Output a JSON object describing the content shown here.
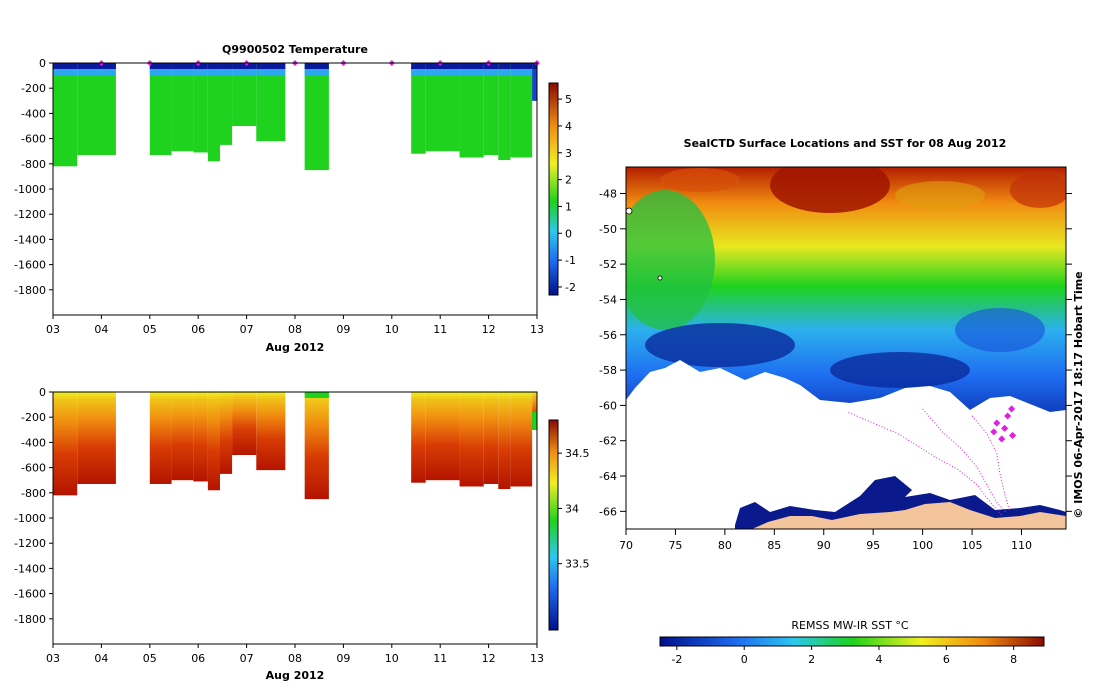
{
  "chart_data": [
    {
      "type": "heatmap",
      "title": "Q9900502  Temperature",
      "xlabel": "Aug 2012",
      "x_ticks": [
        "03",
        "04",
        "05",
        "06",
        "07",
        "08",
        "09",
        "10",
        "11",
        "12",
        "13"
      ],
      "xlim": [
        3,
        13
      ],
      "y_ticks": [
        "0",
        "-200",
        "-400",
        "-600",
        "-800",
        "-1000",
        "-1200",
        "-1400",
        "-1600",
        "-1800"
      ],
      "ylim": [
        -2000,
        0
      ],
      "colorbar_ticks": [
        "5",
        "4",
        "3",
        "2",
        "1",
        "0",
        "-1",
        "-2"
      ],
      "colorbar_range": [
        -2.3,
        5.6
      ],
      "profiles": [
        {
          "start": 3.0,
          "end": 3.5,
          "depth": -820
        },
        {
          "start": 3.5,
          "end": 4.3,
          "depth": -730
        },
        {
          "start": 5.0,
          "end": 5.45,
          "depth": -730
        },
        {
          "start": 5.45,
          "end": 5.9,
          "depth": -700
        },
        {
          "start": 5.9,
          "end": 6.2,
          "depth": -710
        },
        {
          "start": 6.2,
          "end": 6.45,
          "depth": -780
        },
        {
          "start": 6.45,
          "end": 6.7,
          "depth": -650
        },
        {
          "start": 6.7,
          "end": 7.2,
          "depth": -500
        },
        {
          "start": 7.2,
          "end": 7.8,
          "depth": -620
        },
        {
          "start": 8.2,
          "end": 8.7,
          "depth": -850
        },
        {
          "start": 10.4,
          "end": 10.7,
          "depth": -720
        },
        {
          "start": 10.7,
          "end": 11.4,
          "depth": -700
        },
        {
          "start": 11.4,
          "end": 11.9,
          "depth": -750
        },
        {
          "start": 11.9,
          "end": 12.2,
          "depth": -730
        },
        {
          "start": 12.2,
          "end": 12.45,
          "depth": -770
        },
        {
          "start": 12.45,
          "end": 12.9,
          "depth": -750
        },
        {
          "start": 12.9,
          "end": 13.05,
          "depth": -300
        }
      ],
      "surface_markers": [
        4,
        5,
        6,
        7,
        8,
        9,
        10,
        11,
        12,
        13
      ]
    },
    {
      "type": "heatmap",
      "title": "",
      "xlabel": "Aug 2012",
      "x_ticks": [
        "03",
        "04",
        "05",
        "06",
        "07",
        "08",
        "09",
        "10",
        "11",
        "12",
        "13"
      ],
      "xlim": [
        3,
        13
      ],
      "y_ticks": [
        "0",
        "-200",
        "-400",
        "-600",
        "-800",
        "-1000",
        "-1200",
        "-1400",
        "-1600",
        "-1800"
      ],
      "ylim": [
        -2000,
        0
      ],
      "colorbar_ticks": [
        "34.5",
        "34",
        "33.5"
      ],
      "colorbar_range": [
        32.9,
        34.8
      ],
      "profiles": [
        {
          "start": 3.0,
          "end": 3.5,
          "depth": -820
        },
        {
          "start": 3.5,
          "end": 4.3,
          "depth": -730
        },
        {
          "start": 5.0,
          "end": 5.45,
          "depth": -730
        },
        {
          "start": 5.45,
          "end": 5.9,
          "depth": -700
        },
        {
          "start": 5.9,
          "end": 6.2,
          "depth": -710
        },
        {
          "start": 6.2,
          "end": 6.45,
          "depth": -780
        },
        {
          "start": 6.45,
          "end": 6.7,
          "depth": -650
        },
        {
          "start": 6.7,
          "end": 7.2,
          "depth": -500
        },
        {
          "start": 7.2,
          "end": 7.8,
          "depth": -620
        },
        {
          "start": 8.2,
          "end": 8.7,
          "depth": -850
        },
        {
          "start": 10.4,
          "end": 10.7,
          "depth": -720
        },
        {
          "start": 10.7,
          "end": 11.4,
          "depth": -700
        },
        {
          "start": 11.4,
          "end": 11.9,
          "depth": -750
        },
        {
          "start": 11.9,
          "end": 12.2,
          "depth": -730
        },
        {
          "start": 12.2,
          "end": 12.45,
          "depth": -770
        },
        {
          "start": 12.45,
          "end": 12.9,
          "depth": -750
        },
        {
          "start": 12.9,
          "end": 13.05,
          "depth": -300
        }
      ]
    },
    {
      "type": "heatmap",
      "title": "SealCTD Surface Locations and SST for 08 Aug 2012",
      "x_ticks": [
        "70",
        "75",
        "80",
        "85",
        "90",
        "95",
        "100",
        "105",
        "110"
      ],
      "xlim": [
        70,
        114.5
      ],
      "y_ticks": [
        "-48",
        "-50",
        "-52",
        "-54",
        "-56",
        "-58",
        "-60",
        "-62",
        "-64",
        "-66"
      ],
      "ylim": [
        -67,
        -46.5
      ],
      "colorbar_label": "REMSS MW-IR SST °C",
      "colorbar_ticks": [
        "-2",
        "0",
        "2",
        "4",
        "6",
        "8"
      ],
      "colorbar_range": [
        -2.5,
        8.9
      ],
      "side_label": "©  IMOS 06-Apr-2017 18:17 Hobart Time"
    }
  ],
  "colors": {
    "deep_blue": "#00108c",
    "blue": "#1e6cf0",
    "cyan": "#2cc8ee",
    "green": "#1ed21e",
    "yellow": "#f0f020",
    "orange": "#f08c10",
    "red": "#c81e00",
    "dark_red": "#8c0a00",
    "track": "#e020e0",
    "land": "#f4c49c"
  }
}
